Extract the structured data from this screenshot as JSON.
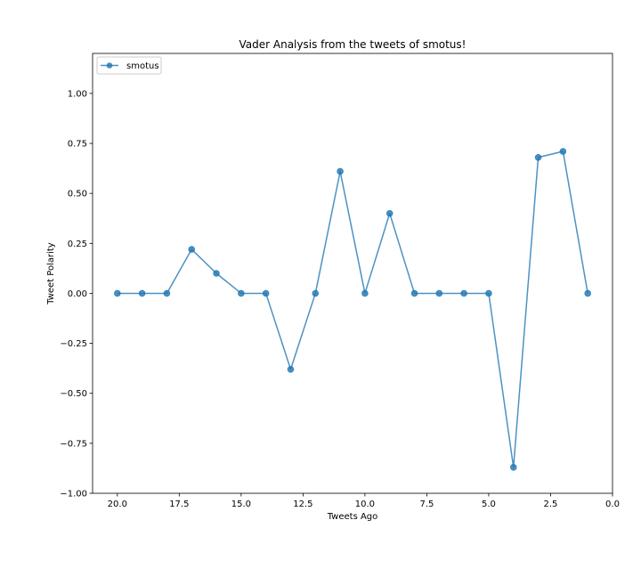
{
  "chart_data": {
    "type": "line",
    "title": "Vader Analysis from the tweets of smotus!",
    "xlabel": "Tweets Ago",
    "ylabel": "Tweet Polarity",
    "xlim": [
      21,
      0
    ],
    "ylim": [
      -1.0,
      1.2
    ],
    "x_inverted": true,
    "grid": false,
    "legend_position": "upper left",
    "x_ticks": [
      "20.0",
      "17.5",
      "15.0",
      "12.5",
      "10.0",
      "7.5",
      "5.0",
      "2.5",
      "0.0"
    ],
    "x_tick_values": [
      20,
      17.5,
      15,
      12.5,
      10,
      7.5,
      5,
      2.5,
      0
    ],
    "y_ticks": [
      "−1.00",
      "−0.75",
      "−0.50",
      "−0.25",
      "0.00",
      "0.25",
      "0.50",
      "0.75",
      "1.00"
    ],
    "y_tick_values": [
      -1.0,
      -0.75,
      -0.5,
      -0.25,
      0.0,
      0.25,
      0.5,
      0.75,
      1.0
    ],
    "series": [
      {
        "name": "smotus",
        "color": "#1f77b4",
        "marker": "circle",
        "x": [
          20,
          19,
          18,
          17,
          16,
          15,
          14,
          13,
          12,
          11,
          10,
          9,
          8,
          7,
          6,
          5,
          4,
          3,
          2,
          1
        ],
        "y": [
          0.0,
          0.0,
          0.0,
          0.22,
          0.1,
          0.0,
          0.0,
          -0.38,
          0.0,
          0.61,
          0.0,
          0.4,
          0.0,
          0.0,
          0.0,
          0.0,
          -0.87,
          0.68,
          0.71,
          0.0
        ]
      }
    ]
  }
}
